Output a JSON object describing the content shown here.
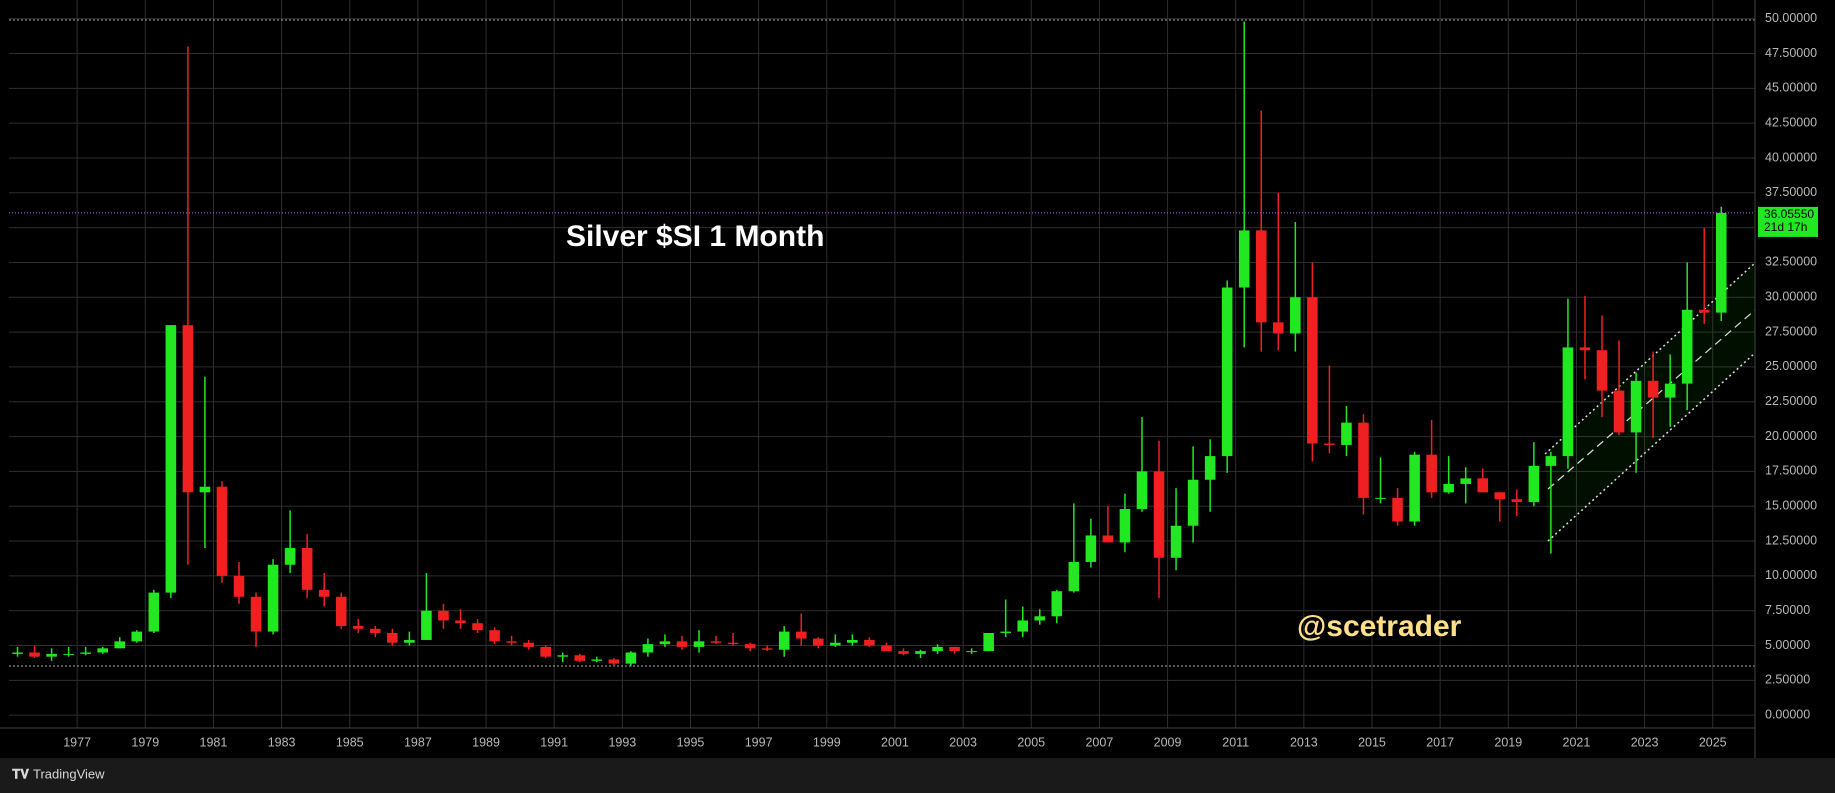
{
  "chart_data": {
    "type": "candlestick",
    "title": "Silver $SI 1 Month",
    "annotation": "@scetrader",
    "watermark": "TradingView",
    "countdown": "21d 17h",
    "last_price": {
      "value": 36.0555,
      "label": "36.05550"
    },
    "up_color": "#22e822",
    "down_color": "#f02020",
    "grid": true,
    "xlim": [
      1975,
      2026.24
    ],
    "ylim": [
      -0.92,
      51.34
    ],
    "xticks": [
      1977,
      1979,
      1981,
      1983,
      1985,
      1987,
      1989,
      1991,
      1993,
      1995,
      1997,
      1999,
      2001,
      2003,
      2005,
      2007,
      2009,
      2011,
      2013,
      2015,
      2017,
      2019,
      2021,
      2023,
      2025
    ],
    "yticks": [
      {
        "value": 0,
        "label": "0.00000"
      },
      {
        "value": 2.5,
        "label": "2.50000"
      },
      {
        "value": 5,
        "label": "5.00000"
      },
      {
        "value": 7.5,
        "label": "7.50000"
      },
      {
        "value": 10,
        "label": "10.00000"
      },
      {
        "value": 12.5,
        "label": "12.50000"
      },
      {
        "value": 15,
        "label": "15.00000"
      },
      {
        "value": 17.5,
        "label": "17.50000"
      },
      {
        "value": 20,
        "label": "20.00000"
      },
      {
        "value": 22.5,
        "label": "22.50000"
      },
      {
        "value": 25,
        "label": "25.00000"
      },
      {
        "value": 27.5,
        "label": "27.50000"
      },
      {
        "value": 30,
        "label": "30.00000"
      },
      {
        "value": 32.5,
        "label": "32.50000"
      },
      {
        "value": 35,
        "label": "35.00000"
      },
      {
        "value": 37.5,
        "label": "37.50000"
      },
      {
        "value": 40,
        "label": "40.00000"
      },
      {
        "value": 42.5,
        "label": "42.50000"
      },
      {
        "value": 45,
        "label": "45.00000"
      },
      {
        "value": 47.5,
        "label": "47.50000"
      },
      {
        "value": 50,
        "label": "50.00000"
      }
    ],
    "x": [
      1975.25,
      1975.75,
      1976.25,
      1976.75,
      1977.25,
      1977.75,
      1978.25,
      1978.75,
      1979.25,
      1979.75,
      1980.25,
      1980.75,
      1981.25,
      1981.75,
      1982.25,
      1982.75,
      1983.25,
      1983.75,
      1984.25,
      1984.75,
      1985.25,
      1985.75,
      1986.25,
      1986.75,
      1987.25,
      1987.75,
      1988.25,
      1988.75,
      1989.25,
      1989.75,
      1990.25,
      1990.75,
      1991.25,
      1991.75,
      1992.25,
      1992.75,
      1993.25,
      1993.75,
      1994.25,
      1994.75,
      1995.25,
      1995.75,
      1996.25,
      1996.75,
      1997.25,
      1997.75,
      1998.25,
      1998.75,
      1999.25,
      1999.75,
      2000.25,
      2000.75,
      2001.25,
      2001.75,
      2002.25,
      2002.75,
      2003.25,
      2003.75,
      2004.25,
      2004.75,
      2005.25,
      2005.75,
      2006.25,
      2006.75,
      2007.25,
      2007.75,
      2008.25,
      2008.75,
      2009.25,
      2009.75,
      2010.25,
      2010.75,
      2011.25,
      2011.75,
      2012.25,
      2012.75,
      2013.25,
      2013.75,
      2014.25,
      2014.75,
      2015.25,
      2015.75,
      2016.25,
      2016.75,
      2017.25,
      2017.75,
      2018.25,
      2018.75,
      2019.25,
      2019.75,
      2020.25,
      2020.75,
      2021.25,
      2021.75,
      2022.25,
      2022.75,
      2023.25,
      2023.75,
      2024.25,
      2024.75,
      2025.25
    ],
    "open": [
      4.4,
      4.5,
      4.2,
      4.4,
      4.4,
      4.5,
      4.8,
      5.3,
      6.0,
      8.8,
      28.0,
      16.0,
      16.4,
      10.0,
      8.5,
      6.0,
      10.8,
      12.0,
      9.0,
      8.5,
      6.4,
      6.2,
      5.9,
      5.2,
      5.4,
      7.5,
      6.8,
      6.6,
      6.1,
      5.3,
      5.2,
      4.9,
      4.2,
      4.3,
      3.9,
      4.0,
      3.7,
      4.5,
      5.1,
      5.3,
      4.9,
      5.3,
      5.2,
      5.1,
      4.8,
      4.7,
      6.0,
      5.5,
      5.0,
      5.2,
      5.4,
      5.0,
      4.6,
      4.4,
      4.6,
      4.9,
      4.6,
      4.6,
      5.9,
      6.0,
      6.8,
      7.1,
      8.9,
      11.0,
      12.9,
      12.4,
      14.8,
      17.5,
      11.3,
      13.6,
      16.9,
      18.6,
      30.7,
      34.8,
      28.2,
      27.4,
      30.0,
      19.5,
      19.4,
      21.0,
      15.6,
      15.6,
      13.9,
      18.7,
      16.0,
      16.6,
      17.0,
      16.0,
      15.5,
      15.3,
      17.9,
      18.6,
      26.4,
      26.2,
      23.3,
      20.3,
      24.0,
      22.8,
      23.8,
      29.1,
      28.9
    ],
    "high": [
      4.9,
      5.0,
      4.8,
      4.9,
      4.9,
      4.9,
      5.6,
      6.1,
      9.0,
      28.0,
      48.0,
      24.3,
      16.8,
      11.0,
      8.8,
      11.2,
      14.7,
      13.0,
      10.2,
      8.8,
      6.9,
      6.4,
      6.2,
      6.0,
      10.2,
      8.0,
      7.6,
      6.9,
      6.3,
      5.7,
      5.4,
      5.0,
      4.5,
      4.4,
      4.2,
      4.1,
      4.6,
      5.5,
      5.8,
      5.7,
      6.1,
      5.7,
      5.9,
      5.2,
      5.0,
      6.4,
      7.3,
      5.6,
      5.8,
      5.8,
      5.6,
      5.2,
      4.8,
      4.7,
      5.1,
      4.9,
      4.8,
      5.9,
      8.3,
      7.8,
      7.6,
      9.0,
      15.2,
      14.1,
      15.0,
      15.9,
      21.4,
      19.7,
      16.3,
      19.3,
      19.8,
      31.2,
      49.8,
      43.4,
      37.5,
      35.4,
      32.5,
      25.1,
      22.2,
      21.6,
      18.5,
      16.3,
      18.9,
      21.2,
      18.6,
      17.8,
      17.7,
      16.0,
      16.2,
      19.6,
      18.9,
      29.9,
      30.1,
      28.7,
      26.9,
      24.6,
      26.1,
      25.9,
      32.5,
      35.0,
      36.5
    ],
    "low": [
      4.2,
      4.1,
      3.9,
      4.2,
      4.3,
      4.4,
      4.8,
      5.2,
      5.9,
      8.4,
      10.8,
      12.0,
      9.5,
      8.0,
      4.9,
      5.8,
      10.2,
      8.4,
      7.8,
      6.2,
      5.9,
      5.6,
      5.0,
      5.0,
      5.4,
      6.2,
      6.2,
      5.9,
      5.1,
      5.0,
      4.7,
      4.1,
      3.8,
      3.8,
      3.8,
      3.6,
      3.5,
      4.2,
      4.9,
      4.7,
      4.5,
      5.1,
      5.0,
      4.6,
      4.6,
      4.2,
      5.0,
      4.8,
      4.9,
      5.0,
      4.9,
      4.6,
      4.3,
      4.1,
      4.4,
      4.4,
      4.4,
      4.6,
      5.6,
      5.6,
      6.5,
      6.6,
      8.8,
      10.6,
      12.4,
      11.7,
      14.6,
      8.4,
      10.4,
      12.4,
      14.6,
      17.4,
      26.4,
      26.1,
      26.2,
      26.1,
      18.2,
      18.8,
      18.6,
      14.4,
      15.2,
      13.6,
      13.6,
      15.6,
      15.9,
      15.2,
      16.0,
      13.9,
      14.3,
      15.0,
      11.6,
      17.7,
      24.1,
      21.4,
      20.1,
      17.4,
      19.9,
      20.7,
      21.9,
      28.1,
      28.3
    ],
    "close": [
      4.5,
      4.2,
      4.4,
      4.4,
      4.5,
      4.8,
      5.3,
      6.0,
      8.8,
      28.0,
      16.0,
      16.4,
      10.0,
      8.5,
      6.0,
      10.8,
      12.0,
      9.0,
      8.5,
      6.4,
      6.2,
      5.9,
      5.2,
      5.4,
      7.5,
      6.8,
      6.6,
      6.1,
      5.3,
      5.2,
      4.9,
      4.2,
      4.3,
      3.9,
      4.0,
      3.7,
      4.5,
      5.1,
      5.3,
      4.9,
      5.3,
      5.2,
      5.1,
      4.8,
      4.7,
      6.0,
      5.5,
      5.0,
      5.2,
      5.4,
      5.0,
      4.6,
      4.4,
      4.6,
      4.9,
      4.6,
      4.6,
      5.9,
      6.0,
      6.8,
      7.1,
      8.9,
      11.0,
      12.9,
      12.4,
      14.8,
      17.5,
      11.3,
      13.6,
      16.9,
      18.6,
      30.7,
      34.8,
      28.2,
      27.4,
      30.0,
      19.5,
      19.4,
      21.0,
      15.6,
      15.6,
      13.9,
      18.7,
      16.0,
      16.6,
      17.0,
      16.0,
      15.5,
      15.3,
      17.9,
      18.6,
      26.4,
      26.2,
      23.3,
      20.3,
      24.0,
      22.8,
      23.8,
      29.1,
      28.9,
      36.0555
    ]
  }
}
